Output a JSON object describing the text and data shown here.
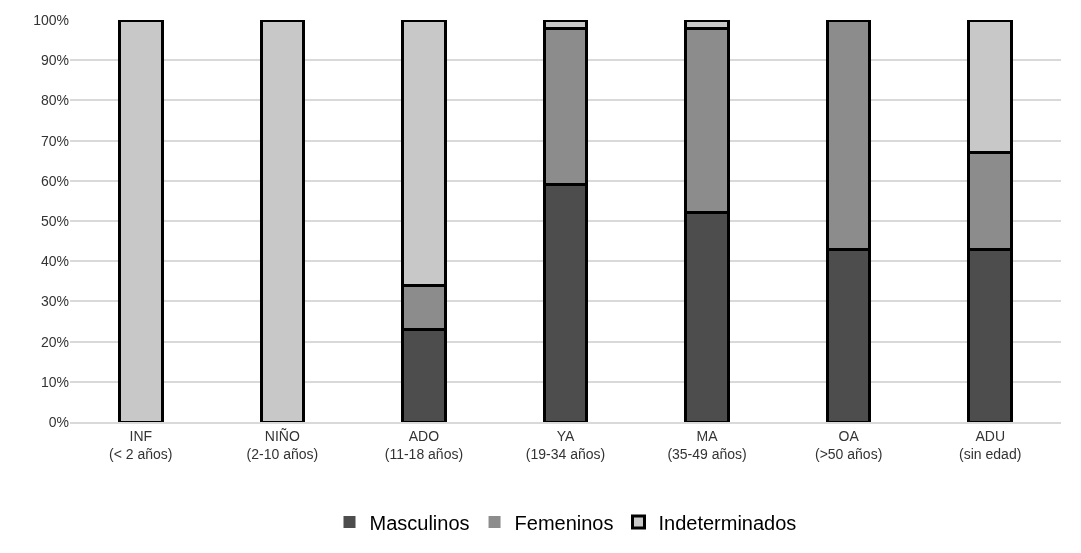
{
  "chart_data": {
    "type": "bar",
    "stacked": true,
    "categories": [
      "INF\n(< 2 años)",
      "NIÑO\n(2-10 años)",
      "ADO\n(11-18 años)",
      "YA\n(19-34 años)",
      "MA\n(35-49 años)",
      "OA\n(>50 años)",
      "ADU\n(sin edad)"
    ],
    "series": [
      {
        "name": "Masculinos",
        "color": "#4d4d4d",
        "values": [
          0,
          0,
          23,
          59,
          52,
          43,
          43
        ]
      },
      {
        "name": "Femeninos",
        "color": "#8c8c8c",
        "values": [
          0,
          0,
          11,
          39,
          46,
          57,
          24
        ]
      },
      {
        "name": "Indeterminados",
        "color": "#c8c8c8",
        "values": [
          100,
          100,
          66,
          2,
          2,
          0,
          33
        ]
      }
    ],
    "ylim": [
      0,
      100
    ],
    "yticks": [
      {
        "value": 0,
        "label": "0%"
      },
      {
        "value": 10,
        "label": "10%"
      },
      {
        "value": 20,
        "label": "20%"
      },
      {
        "value": 30,
        "label": "30%"
      },
      {
        "value": 40,
        "label": "40%"
      },
      {
        "value": 50,
        "label": "50%"
      },
      {
        "value": 60,
        "label": "60%"
      },
      {
        "value": 70,
        "label": "70%"
      },
      {
        "value": 80,
        "label": "80%"
      },
      {
        "value": 90,
        "label": "90%"
      },
      {
        "value": 100,
        "label": "100%"
      }
    ],
    "grid": "y",
    "legend": "bottom"
  }
}
